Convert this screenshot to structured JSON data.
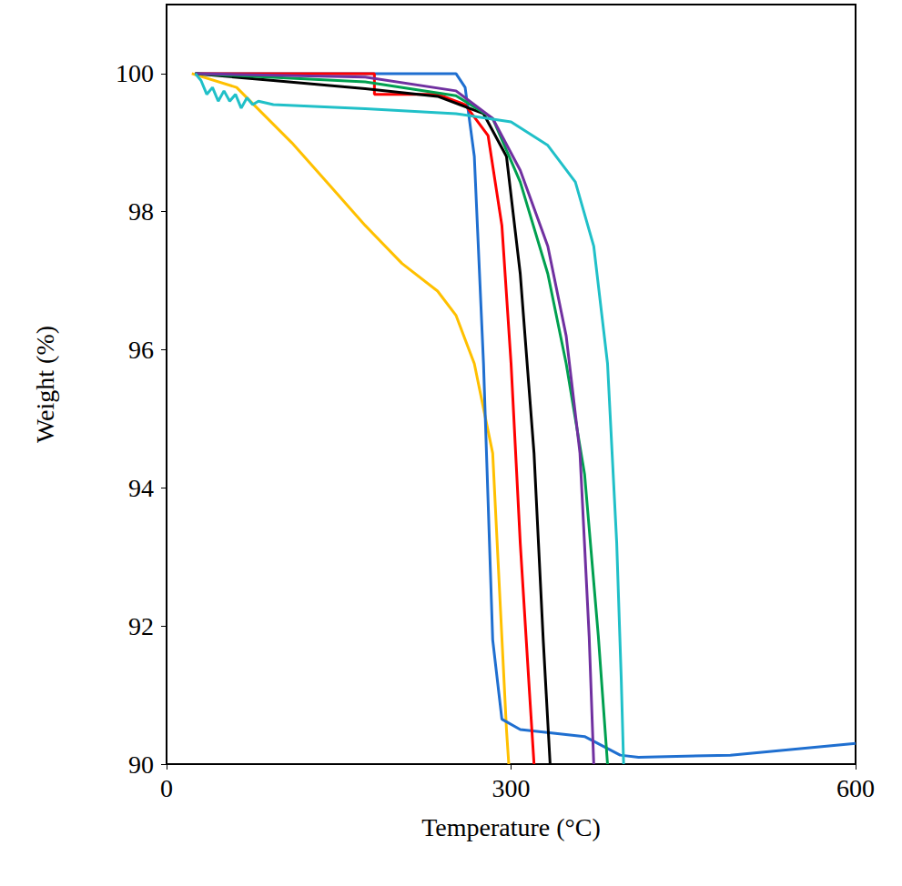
{
  "chart_data": {
    "type": "line",
    "x_label": "Temperature (°C)",
    "y_label": "Weight (%)",
    "xlim": [
      0,
      600
    ],
    "xticks": [
      0,
      300,
      600
    ],
    "ylim": [
      90,
      101
    ],
    "yticks": [
      90,
      92,
      94,
      96,
      98,
      100
    ],
    "grid": false,
    "series": [
      {
        "color": "#FFC000",
        "x": [
          22,
          61,
          109,
          141,
          173,
          205,
          236,
          252,
          268,
          284,
          296,
          298
        ],
        "values": [
          100,
          99.8,
          99.0,
          98.4,
          97.8,
          97.25,
          96.85,
          96.5,
          95.8,
          94.5,
          90.5,
          90
        ]
      },
      {
        "color": "#1F6FD0",
        "x": [
          25,
          252,
          260,
          268,
          276,
          284,
          292,
          308,
          364,
          395,
          411,
          491,
          600
        ],
        "values": [
          100,
          100,
          99.8,
          98.8,
          95.8,
          91.8,
          90.65,
          90.5,
          90.4,
          90.13,
          90.1,
          90.13,
          90.3
        ]
      },
      {
        "color": "#FF0000",
        "x": [
          25,
          181,
          181,
          236,
          260,
          280,
          292,
          300,
          308,
          316,
          320
        ],
        "values": [
          100,
          100,
          99.7,
          99.7,
          99.55,
          99.1,
          97.8,
          95.8,
          93.2,
          91.05,
          90
        ]
      },
      {
        "color": "#000000",
        "x": [
          25,
          93,
          173,
          236,
          276,
          296,
          308,
          320,
          328,
          334
        ],
        "values": [
          100,
          99.9,
          99.78,
          99.67,
          99.42,
          98.8,
          97.1,
          94.5,
          91.8,
          90
        ]
      },
      {
        "color": "#00A050",
        "x": [
          25,
          173,
          252,
          284,
          308,
          332,
          348,
          364,
          376,
          384
        ],
        "values": [
          100,
          99.88,
          99.68,
          99.35,
          98.43,
          97.1,
          95.8,
          94.2,
          91.85,
          90
        ]
      },
      {
        "color": "#7030A0",
        "x": [
          25,
          173,
          252,
          284,
          308,
          332,
          348,
          360,
          368,
          372
        ],
        "values": [
          100,
          99.95,
          99.75,
          99.35,
          98.6,
          97.5,
          96.2,
          94.5,
          91.85,
          90
        ]
      },
      {
        "color": "#20C0C8",
        "x": [
          25,
          30,
          35,
          40,
          45,
          50,
          55,
          60,
          65,
          70,
          75,
          80,
          93,
          173,
          252,
          300,
          332,
          356,
          372,
          384,
          392,
          396,
          398
        ],
        "values": [
          100,
          99.9,
          99.7,
          99.8,
          99.6,
          99.75,
          99.6,
          99.7,
          99.5,
          99.65,
          99.55,
          99.6,
          99.55,
          99.49,
          99.42,
          99.3,
          98.96,
          98.43,
          97.5,
          95.8,
          93.2,
          91.2,
          90
        ]
      }
    ]
  }
}
